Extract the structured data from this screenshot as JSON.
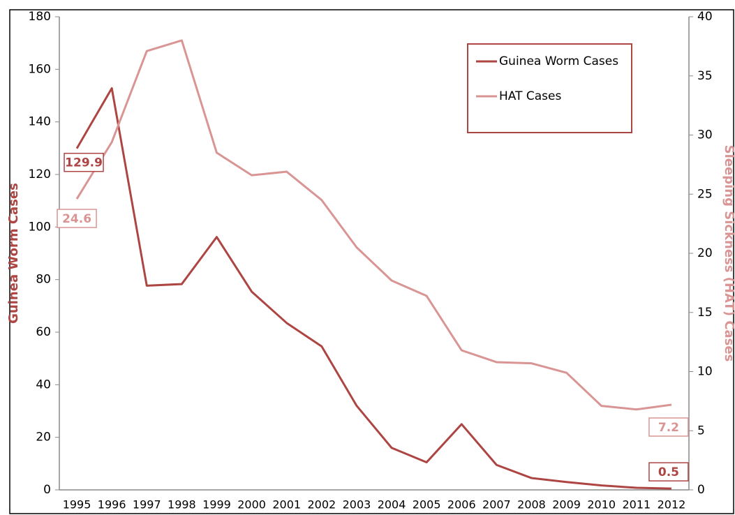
{
  "chart_data": {
    "type": "line",
    "ylabel": "Guinea Worm Cases",
    "y2label": "Sleeping Sickness (HAT) Cases",
    "categories": [
      "1995",
      "1996",
      "1997",
      "1998",
      "1999",
      "2000",
      "2001",
      "2002",
      "2003",
      "2004",
      "2005",
      "2006",
      "2007",
      "2008",
      "2009",
      "2010",
      "2011",
      "2012"
    ],
    "series": [
      {
        "name": "Guinea Worm Cases",
        "color": "#ad4543",
        "axis": "y",
        "values": [
          129.9,
          152.8,
          77.7,
          78.3,
          96.2,
          75.4,
          63.5,
          54.6,
          32,
          16,
          10.5,
          25,
          9.5,
          4.5,
          3,
          1.7,
          0.8,
          0.5
        ]
      },
      {
        "name": "HAT Cases",
        "color": "#d99594",
        "axis": "y2",
        "values": [
          24.6,
          29.4,
          37.1,
          38,
          28.5,
          26.6,
          26.9,
          24.5,
          20.5,
          17.7,
          16.4,
          11.8,
          10.8,
          10.7,
          9.9,
          7.1,
          6.8,
          7.2
        ]
      }
    ],
    "ylim": [
      0,
      180
    ],
    "yticks": [
      0,
      20,
      40,
      60,
      80,
      100,
      120,
      140,
      160,
      180
    ],
    "y2lim": [
      0,
      40
    ],
    "y2ticks": [
      0,
      5,
      10,
      15,
      20,
      25,
      30,
      35,
      40
    ],
    "legend": "top-right"
  }
}
